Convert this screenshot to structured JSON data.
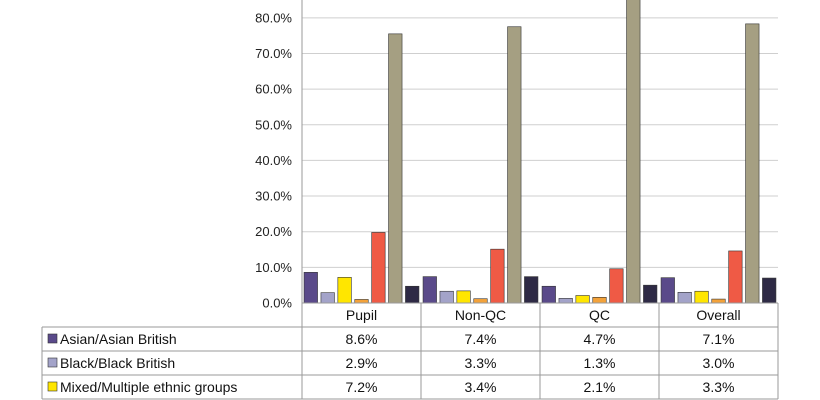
{
  "chart_data": {
    "type": "bar",
    "categories": [
      "Pupil",
      "Non-QC",
      "QC",
      "Overall"
    ],
    "ylim": [
      0,
      85
    ],
    "yticks": [
      "0.0%",
      "10.0%",
      "20.0%",
      "30.0%",
      "40.0%",
      "50.0%",
      "60.0%",
      "70.0%",
      "80.0%"
    ],
    "ytick_values": [
      0,
      10,
      20,
      30,
      40,
      50,
      60,
      70,
      80
    ],
    "grid": true,
    "series": [
      {
        "name": "Asian/Asian British",
        "color": "#5a4a8a",
        "values": [
          8.6,
          7.4,
          4.7,
          7.1
        ]
      },
      {
        "name": "Black/Black British",
        "color": "#a3a3c9",
        "values": [
          2.9,
          3.3,
          1.3,
          3.0
        ]
      },
      {
        "name": "Mixed/Multiple ethnic groups",
        "color": "#ffe600",
        "values": [
          7.2,
          3.4,
          2.1,
          3.3
        ]
      },
      {
        "values": [
          1.0,
          1.2,
          1.6,
          1.1
        ],
        "color": "#f3a23a"
      },
      {
        "values": [
          19.8,
          15.1,
          9.6,
          14.6
        ],
        "color": "#ef5a45"
      },
      {
        "values": [
          75.5,
          77.5,
          85.5,
          78.3
        ],
        "color": "#a59f82"
      },
      {
        "values": [
          4.7,
          7.4,
          5.0,
          7.0
        ],
        "color": "#2e2a45"
      }
    ],
    "table": {
      "rows": [
        {
          "label": "Asian/Asian British",
          "values": [
            "8.6%",
            "7.4%",
            "4.7%",
            "7.1%"
          ]
        },
        {
          "label": "Black/Black British",
          "values": [
            "2.9%",
            "3.3%",
            "1.3%",
            "3.0%"
          ]
        },
        {
          "label": "Mixed/Multiple ethnic groups",
          "values": [
            "7.2%",
            "3.4%",
            "2.1%",
            "3.3%"
          ]
        }
      ]
    }
  }
}
